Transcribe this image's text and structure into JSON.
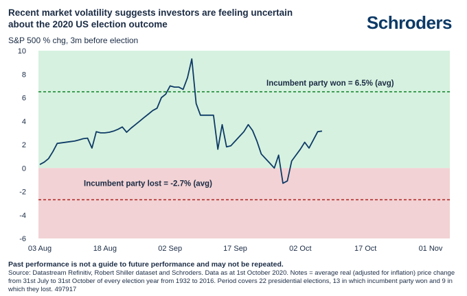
{
  "header": {
    "title": "Recent market volatility suggests investors are feeling uncertain about the 2020 US election outcome",
    "brand": "Schroders",
    "subtitle": "S&P 500 % chg, 3m before election"
  },
  "footer": {
    "disclaimer": "Past performance is not a guide to future performance and may not be repeated.",
    "source": "Source: Datastream Refinitiv, Robert Shiller dataset and Schroders. Data as at 1st October 2020. Notes = average real (adjusted for inflation) price change from 31st July to 31st October of every election year from 1932 to 2016. Period covers 22 presidential elections, 13 in which incumbent party won and 9 in which they lost. 497917"
  },
  "colors": {
    "green_zone": "#d6f1df",
    "red_zone": "#f2d2d4",
    "line": "#0d3a66",
    "won_line": "#1a8a33",
    "lost_line": "#b01e1e"
  },
  "chart_data": {
    "type": "line",
    "ylim": [
      -6,
      10
    ],
    "yticks": [
      10,
      8,
      6,
      4,
      2,
      0,
      -2,
      -4,
      -6
    ],
    "x_axis": {
      "range": [
        "2020-08-03",
        "2020-11-01"
      ],
      "ticks": [
        {
          "date": "2020-08-03",
          "label": "03 Aug"
        },
        {
          "date": "2020-08-18",
          "label": "18 Aug"
        },
        {
          "date": "2020-09-02",
          "label": "02 Sep"
        },
        {
          "date": "2020-09-17",
          "label": "17 Sep"
        },
        {
          "date": "2020-10-02",
          "label": "02 Oct"
        },
        {
          "date": "2020-10-17",
          "label": "17 Oct"
        },
        {
          "date": "2020-11-01",
          "label": "01 Nov"
        }
      ]
    },
    "series": [
      {
        "points": [
          [
            "2020-08-03",
            0.3
          ],
          [
            "2020-08-04",
            0.5
          ],
          [
            "2020-08-05",
            0.8
          ],
          [
            "2020-08-06",
            1.4
          ],
          [
            "2020-08-07",
            2.1
          ],
          [
            "2020-08-10",
            2.25
          ],
          [
            "2020-08-11",
            2.3
          ],
          [
            "2020-08-12",
            2.4
          ],
          [
            "2020-08-13",
            2.5
          ],
          [
            "2020-08-14",
            2.55
          ],
          [
            "2020-08-15",
            1.7
          ],
          [
            "2020-08-16",
            3.1
          ],
          [
            "2020-08-17",
            3.0
          ],
          [
            "2020-08-18",
            3.0
          ],
          [
            "2020-08-19",
            3.05
          ],
          [
            "2020-08-20",
            3.15
          ],
          [
            "2020-08-21",
            3.3
          ],
          [
            "2020-08-22",
            3.5
          ],
          [
            "2020-08-23",
            3.05
          ],
          [
            "2020-08-24",
            3.4
          ],
          [
            "2020-08-25",
            3.7
          ],
          [
            "2020-08-26",
            4.0
          ],
          [
            "2020-08-27",
            4.3
          ],
          [
            "2020-08-28",
            4.6
          ],
          [
            "2020-08-29",
            4.9
          ],
          [
            "2020-08-30",
            5.1
          ],
          [
            "2020-08-31",
            6.0
          ],
          [
            "2020-09-01",
            6.3
          ],
          [
            "2020-09-02",
            7.0
          ],
          [
            "2020-09-03",
            6.9
          ],
          [
            "2020-09-04",
            6.9
          ],
          [
            "2020-09-05",
            6.7
          ],
          [
            "2020-09-06",
            7.7
          ],
          [
            "2020-09-07",
            9.3
          ],
          [
            "2020-09-08",
            5.5
          ],
          [
            "2020-09-09",
            4.5
          ],
          [
            "2020-09-10",
            4.5
          ],
          [
            "2020-09-11",
            4.5
          ],
          [
            "2020-09-12",
            4.5
          ],
          [
            "2020-09-13",
            1.6
          ],
          [
            "2020-09-14",
            3.7
          ],
          [
            "2020-09-15",
            1.8
          ],
          [
            "2020-09-16",
            1.9
          ],
          [
            "2020-09-17",
            2.3
          ],
          [
            "2020-09-18",
            2.7
          ],
          [
            "2020-09-19",
            3.1
          ],
          [
            "2020-09-20",
            3.7
          ],
          [
            "2020-09-21",
            3.2
          ],
          [
            "2020-09-22",
            2.3
          ],
          [
            "2020-09-23",
            1.2
          ],
          [
            "2020-09-24",
            0.8
          ],
          [
            "2020-09-25",
            0.4
          ],
          [
            "2020-09-26",
            0.0
          ],
          [
            "2020-09-27",
            1.1
          ],
          [
            "2020-09-28",
            -1.3
          ],
          [
            "2020-09-29",
            -1.1
          ],
          [
            "2020-09-30",
            0.6
          ],
          [
            "2020-10-01",
            1.1
          ],
          [
            "2020-10-02",
            1.6
          ],
          [
            "2020-10-03",
            2.2
          ],
          [
            "2020-10-04",
            1.7
          ],
          [
            "2020-10-05",
            2.4
          ],
          [
            "2020-10-06",
            3.1
          ],
          [
            "2020-10-07",
            3.15
          ]
        ]
      }
    ],
    "reference_lines": [
      {
        "value": 6.5,
        "label": "Incumbent party won = 6.5% (avg)"
      },
      {
        "value": -2.7,
        "label": "Incumbent party lost = -2.7% (avg)"
      }
    ],
    "zones": [
      {
        "from": 0,
        "to": 10,
        "color": "#d6f1df"
      },
      {
        "from": -6,
        "to": 0,
        "color": "#f2d2d4"
      }
    ]
  }
}
